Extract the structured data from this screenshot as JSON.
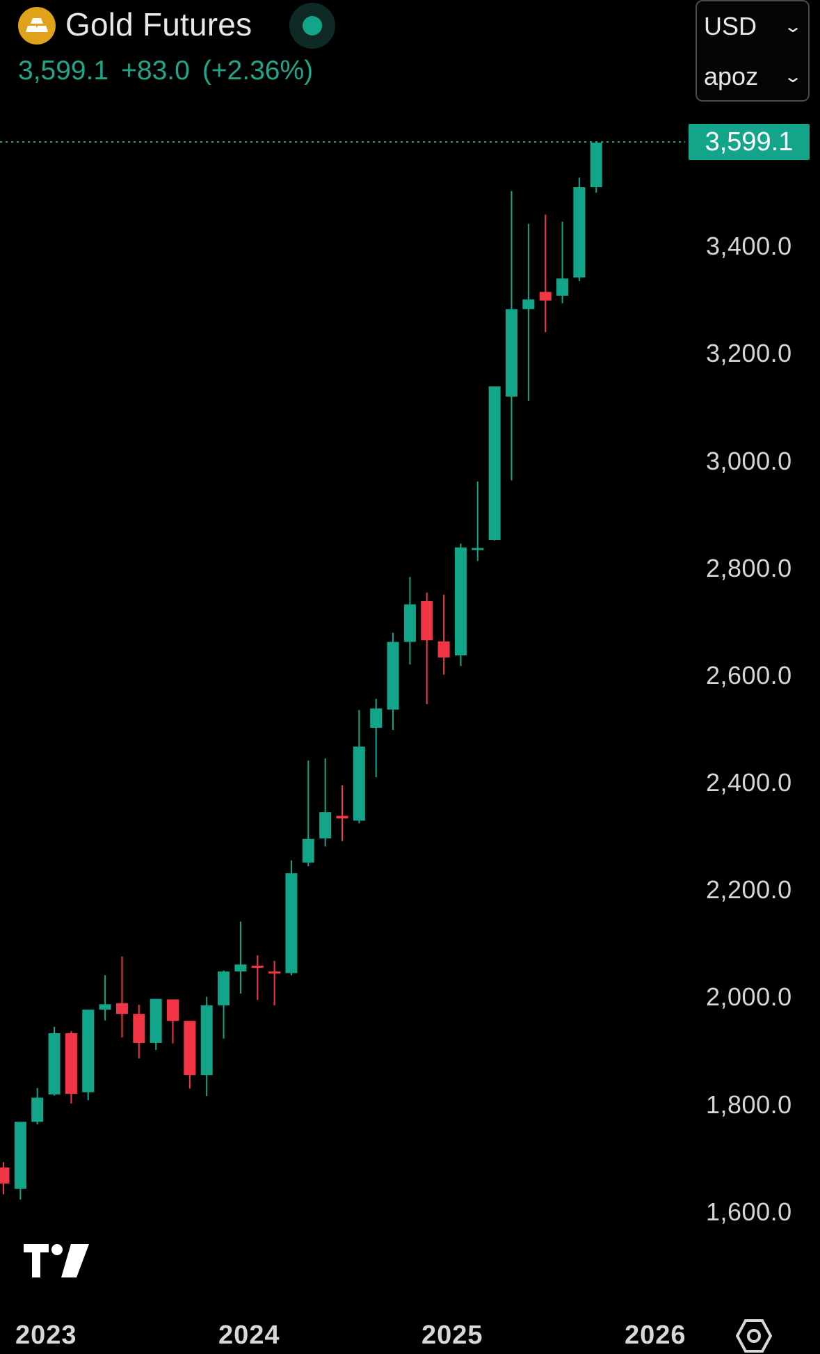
{
  "header": {
    "title": "Gold Futures",
    "logo_icon": "gold-bars-icon",
    "status_icon": "market-open-dot-icon",
    "price": "3,599.1",
    "change": "+83.0",
    "change_pct": "(+2.36%)"
  },
  "selectors": {
    "currency": "USD",
    "unit": "apoz"
  },
  "last_price_tag": "3,599.1",
  "colors": {
    "background": "#000000",
    "up": "#12a58a",
    "down": "#f23645",
    "accent_text": "#1fa68a"
  },
  "branding": {
    "logo_icon": "tradingview-logo-icon"
  },
  "settings_icon": "settings-hexagon-icon",
  "chart_data": {
    "type": "candlestick",
    "interval": "monthly",
    "y_axis": {
      "min": 1450,
      "max": 3700,
      "ticks": [
        "3,400.0",
        "3,200.0",
        "3,000.0",
        "2,800.0",
        "2,600.0",
        "2,400.0",
        "2,200.0",
        "2,000.0",
        "1,800.0",
        "1,600.0"
      ],
      "tick_values": [
        3400,
        3200,
        3000,
        2800,
        2600,
        2400,
        2200,
        2000,
        1800,
        1600
      ]
    },
    "x_axis": {
      "labels": [
        "2023",
        "2024",
        "2025",
        "2026"
      ]
    },
    "current_price": 3599.1,
    "candles": [
      {
        "o": 1690,
        "h": 1700,
        "l": 1640,
        "c": 1660
      },
      {
        "o": 1650,
        "h": 1760,
        "l": 1630,
        "c": 1775
      },
      {
        "o": 1775,
        "h": 1838,
        "l": 1770,
        "c": 1820
      },
      {
        "o": 1826,
        "h": 1952,
        "l": 1824,
        "c": 1940
      },
      {
        "o": 1940,
        "h": 1944,
        "l": 1809,
        "c": 1827
      },
      {
        "o": 1830,
        "h": 1974,
        "l": 1815,
        "c": 1984
      },
      {
        "o": 1984,
        "h": 2048,
        "l": 1964,
        "c": 1994
      },
      {
        "o": 1996,
        "h": 2083,
        "l": 1932,
        "c": 1976
      },
      {
        "o": 1976,
        "h": 1993,
        "l": 1893,
        "c": 1922
      },
      {
        "o": 1922,
        "h": 2004,
        "l": 1909,
        "c": 2004
      },
      {
        "o": 2003,
        "h": 1998,
        "l": 1921,
        "c": 1963
      },
      {
        "o": 1963,
        "h": 1954,
        "l": 1837,
        "c": 1862
      },
      {
        "o": 1862,
        "h": 2008,
        "l": 1823,
        "c": 1992
      },
      {
        "o": 1992,
        "h": 2057,
        "l": 1930,
        "c": 2055
      },
      {
        "o": 2055,
        "h": 2148,
        "l": 2014,
        "c": 2068
      },
      {
        "o": 2066,
        "h": 2085,
        "l": 2002,
        "c": 2062
      },
      {
        "o": 2055,
        "h": 2075,
        "l": 1992,
        "c": 2054
      },
      {
        "o": 2052,
        "h": 2262,
        "l": 2048,
        "c": 2238
      },
      {
        "o": 2258,
        "h": 2448,
        "l": 2251,
        "c": 2302
      },
      {
        "o": 2303,
        "h": 2452,
        "l": 2288,
        "c": 2352
      },
      {
        "o": 2345,
        "h": 2402,
        "l": 2298,
        "c": 2340
      },
      {
        "o": 2336,
        "h": 2542,
        "l": 2331,
        "c": 2474
      },
      {
        "o": 2509,
        "h": 2563,
        "l": 2417,
        "c": 2545
      },
      {
        "o": 2543,
        "h": 2686,
        "l": 2505,
        "c": 2669
      },
      {
        "o": 2669,
        "h": 2790,
        "l": 2627,
        "c": 2739
      },
      {
        "o": 2745,
        "h": 2761,
        "l": 2553,
        "c": 2672
      },
      {
        "o": 2670,
        "h": 2757,
        "l": 2608,
        "c": 2640
      },
      {
        "o": 2644,
        "h": 2852,
        "l": 2624,
        "c": 2845
      },
      {
        "o": 2843,
        "h": 2968,
        "l": 2820,
        "c": 2844
      },
      {
        "o": 2859,
        "h": 3142,
        "l": 2858,
        "c": 3145
      },
      {
        "o": 3126,
        "h": 3509,
        "l": 2970,
        "c": 3289
      },
      {
        "o": 3289,
        "h": 3448,
        "l": 3118,
        "c": 3307
      },
      {
        "o": 3321,
        "h": 3465,
        "l": 3246,
        "c": 3305
      },
      {
        "o": 3314,
        "h": 3452,
        "l": 3300,
        "c": 3346
      },
      {
        "o": 3348,
        "h": 3534,
        "l": 3341,
        "c": 3516
      },
      {
        "o": 3516,
        "h": 3599,
        "l": 3506,
        "c": 3599.1
      }
    ]
  }
}
